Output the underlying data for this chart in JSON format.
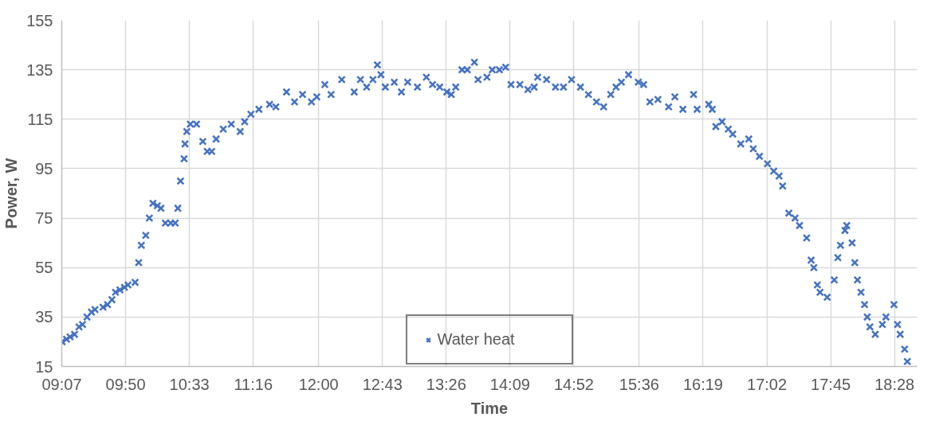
{
  "chart_data": {
    "type": "scatter",
    "xlabel": "Time",
    "ylabel": "Power, W",
    "marker": "cross",
    "grid": true,
    "legend": "bottom",
    "xlim": [
      9.1167,
      18.72
    ],
    "ylim": [
      15,
      155
    ],
    "xticks": [
      {
        "value": 9.1167,
        "label": "09:07"
      },
      {
        "value": 9.8333,
        "label": "09:50"
      },
      {
        "value": 10.55,
        "label": "10:33"
      },
      {
        "value": 11.2667,
        "label": "11:16"
      },
      {
        "value": 12.0,
        "label": "12:00"
      },
      {
        "value": 12.7167,
        "label": "12:43"
      },
      {
        "value": 13.4333,
        "label": "13:26"
      },
      {
        "value": 14.15,
        "label": "14:09"
      },
      {
        "value": 14.8667,
        "label": "14:52"
      },
      {
        "value": 15.6,
        "label": "15:36"
      },
      {
        "value": 16.3167,
        "label": "16:19"
      },
      {
        "value": 17.0333,
        "label": "17:02"
      },
      {
        "value": 17.75,
        "label": "17:45"
      },
      {
        "value": 18.4667,
        "label": "18:28"
      }
    ],
    "yticks": [
      15,
      35,
      55,
      75,
      95,
      115,
      135,
      155
    ],
    "series": [
      {
        "name": "Water heat",
        "color": "#4472c4",
        "x": [
          9.12,
          9.17,
          9.21,
          9.26,
          9.31,
          9.35,
          9.4,
          9.45,
          9.49,
          9.58,
          9.63,
          9.68,
          9.72,
          9.77,
          9.82,
          9.86,
          9.94,
          9.98,
          10.01,
          10.06,
          10.1,
          10.14,
          10.19,
          10.23,
          10.28,
          10.34,
          10.39,
          10.42,
          10.45,
          10.49,
          10.5,
          10.52,
          10.56,
          10.63,
          10.7,
          10.75,
          10.8,
          10.85,
          10.93,
          11.02,
          11.12,
          11.17,
          11.24,
          11.33,
          11.45,
          11.52,
          11.64,
          11.73,
          11.82,
          11.92,
          11.98,
          12.07,
          12.14,
          12.26,
          12.4,
          12.47,
          12.54,
          12.61,
          12.66,
          12.7,
          12.75,
          12.85,
          12.93,
          13.0,
          13.11,
          13.21,
          13.28,
          13.36,
          13.44,
          13.49,
          13.54,
          13.61,
          13.67,
          13.75,
          13.79,
          13.89,
          13.95,
          14.03,
          14.1,
          14.16,
          14.26,
          14.35,
          14.42,
          14.46,
          14.56,
          14.66,
          14.75,
          14.84,
          14.94,
          15.03,
          15.12,
          15.2,
          15.28,
          15.34,
          15.4,
          15.48,
          15.59,
          15.65,
          15.72,
          15.81,
          15.93,
          16.0,
          16.09,
          16.21,
          16.25,
          16.38,
          16.42,
          16.46,
          16.53,
          16.6,
          16.65,
          16.74,
          16.83,
          16.88,
          16.95,
          17.04,
          17.11,
          17.17,
          17.21,
          17.28,
          17.35,
          17.4,
          17.48,
          17.53,
          17.56,
          17.6,
          17.63,
          17.71,
          17.79,
          17.83,
          17.86,
          17.91,
          17.93,
          17.99,
          18.02,
          18.05,
          18.09,
          18.13,
          18.16,
          18.19,
          18.25,
          18.33,
          18.37,
          18.46,
          18.5,
          18.53,
          18.58,
          18.61
        ],
        "values": [
          25,
          26,
          27,
          28,
          31,
          32,
          35,
          37,
          38,
          39,
          40,
          42,
          45,
          46,
          47,
          48,
          49,
          57,
          64,
          68,
          75,
          81,
          80,
          79,
          73,
          73,
          73,
          79,
          90,
          99,
          105,
          110,
          113,
          113,
          106,
          102,
          102,
          107,
          111,
          113,
          110,
          114,
          117,
          119,
          121,
          120,
          126,
          122,
          125,
          122,
          124,
          129,
          125,
          131,
          126,
          131,
          128,
          131,
          137,
          133,
          128,
          130,
          126,
          130,
          128,
          132,
          129,
          128,
          126,
          125,
          128,
          135,
          135,
          138,
          131,
          132,
          135,
          135,
          136,
          129,
          129,
          127,
          128,
          132,
          131,
          128,
          128,
          131,
          128,
          125,
          122,
          120,
          125,
          128,
          130,
          133,
          130,
          129,
          122,
          123,
          120,
          124,
          119,
          125,
          119,
          121,
          119,
          112,
          114,
          111,
          109,
          105,
          107,
          103,
          100,
          97,
          94,
          92,
          88,
          77,
          75,
          72,
          67,
          58,
          55,
          48,
          45,
          43,
          50,
          59,
          64,
          70,
          72,
          65,
          57,
          50,
          45,
          40,
          35,
          31,
          28,
          32,
          35,
          40,
          32,
          28,
          22,
          17
        ]
      }
    ]
  }
}
